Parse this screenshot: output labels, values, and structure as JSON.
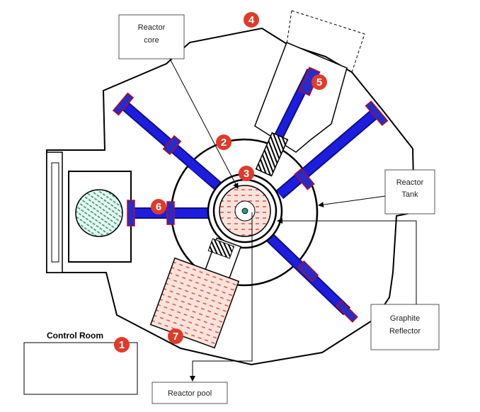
{
  "labels": {
    "reactor_core_line1": "Reactor",
    "reactor_core_line2": "core",
    "reactor_tank_line1": "Reactor",
    "reactor_tank_line2": "Tank",
    "graphite_line1": "Graphite",
    "graphite_line2": "Reflector",
    "reactor_pool": "Reactor pool",
    "control_room": "Control Room"
  },
  "markers": [
    "1",
    "2",
    "3",
    "4",
    "5",
    "6",
    "7"
  ],
  "colors": {
    "beam_tube": "#1d1de0",
    "beam_edge": "#101080",
    "flange": "#2a2ac8",
    "flange_edge": "#b01020",
    "marker": "#e03a2a",
    "hatch_green": "#2a9a7a",
    "hatch_red": "#d04a3a",
    "core_fill": "#fbe3dc",
    "outline": "#000000"
  }
}
